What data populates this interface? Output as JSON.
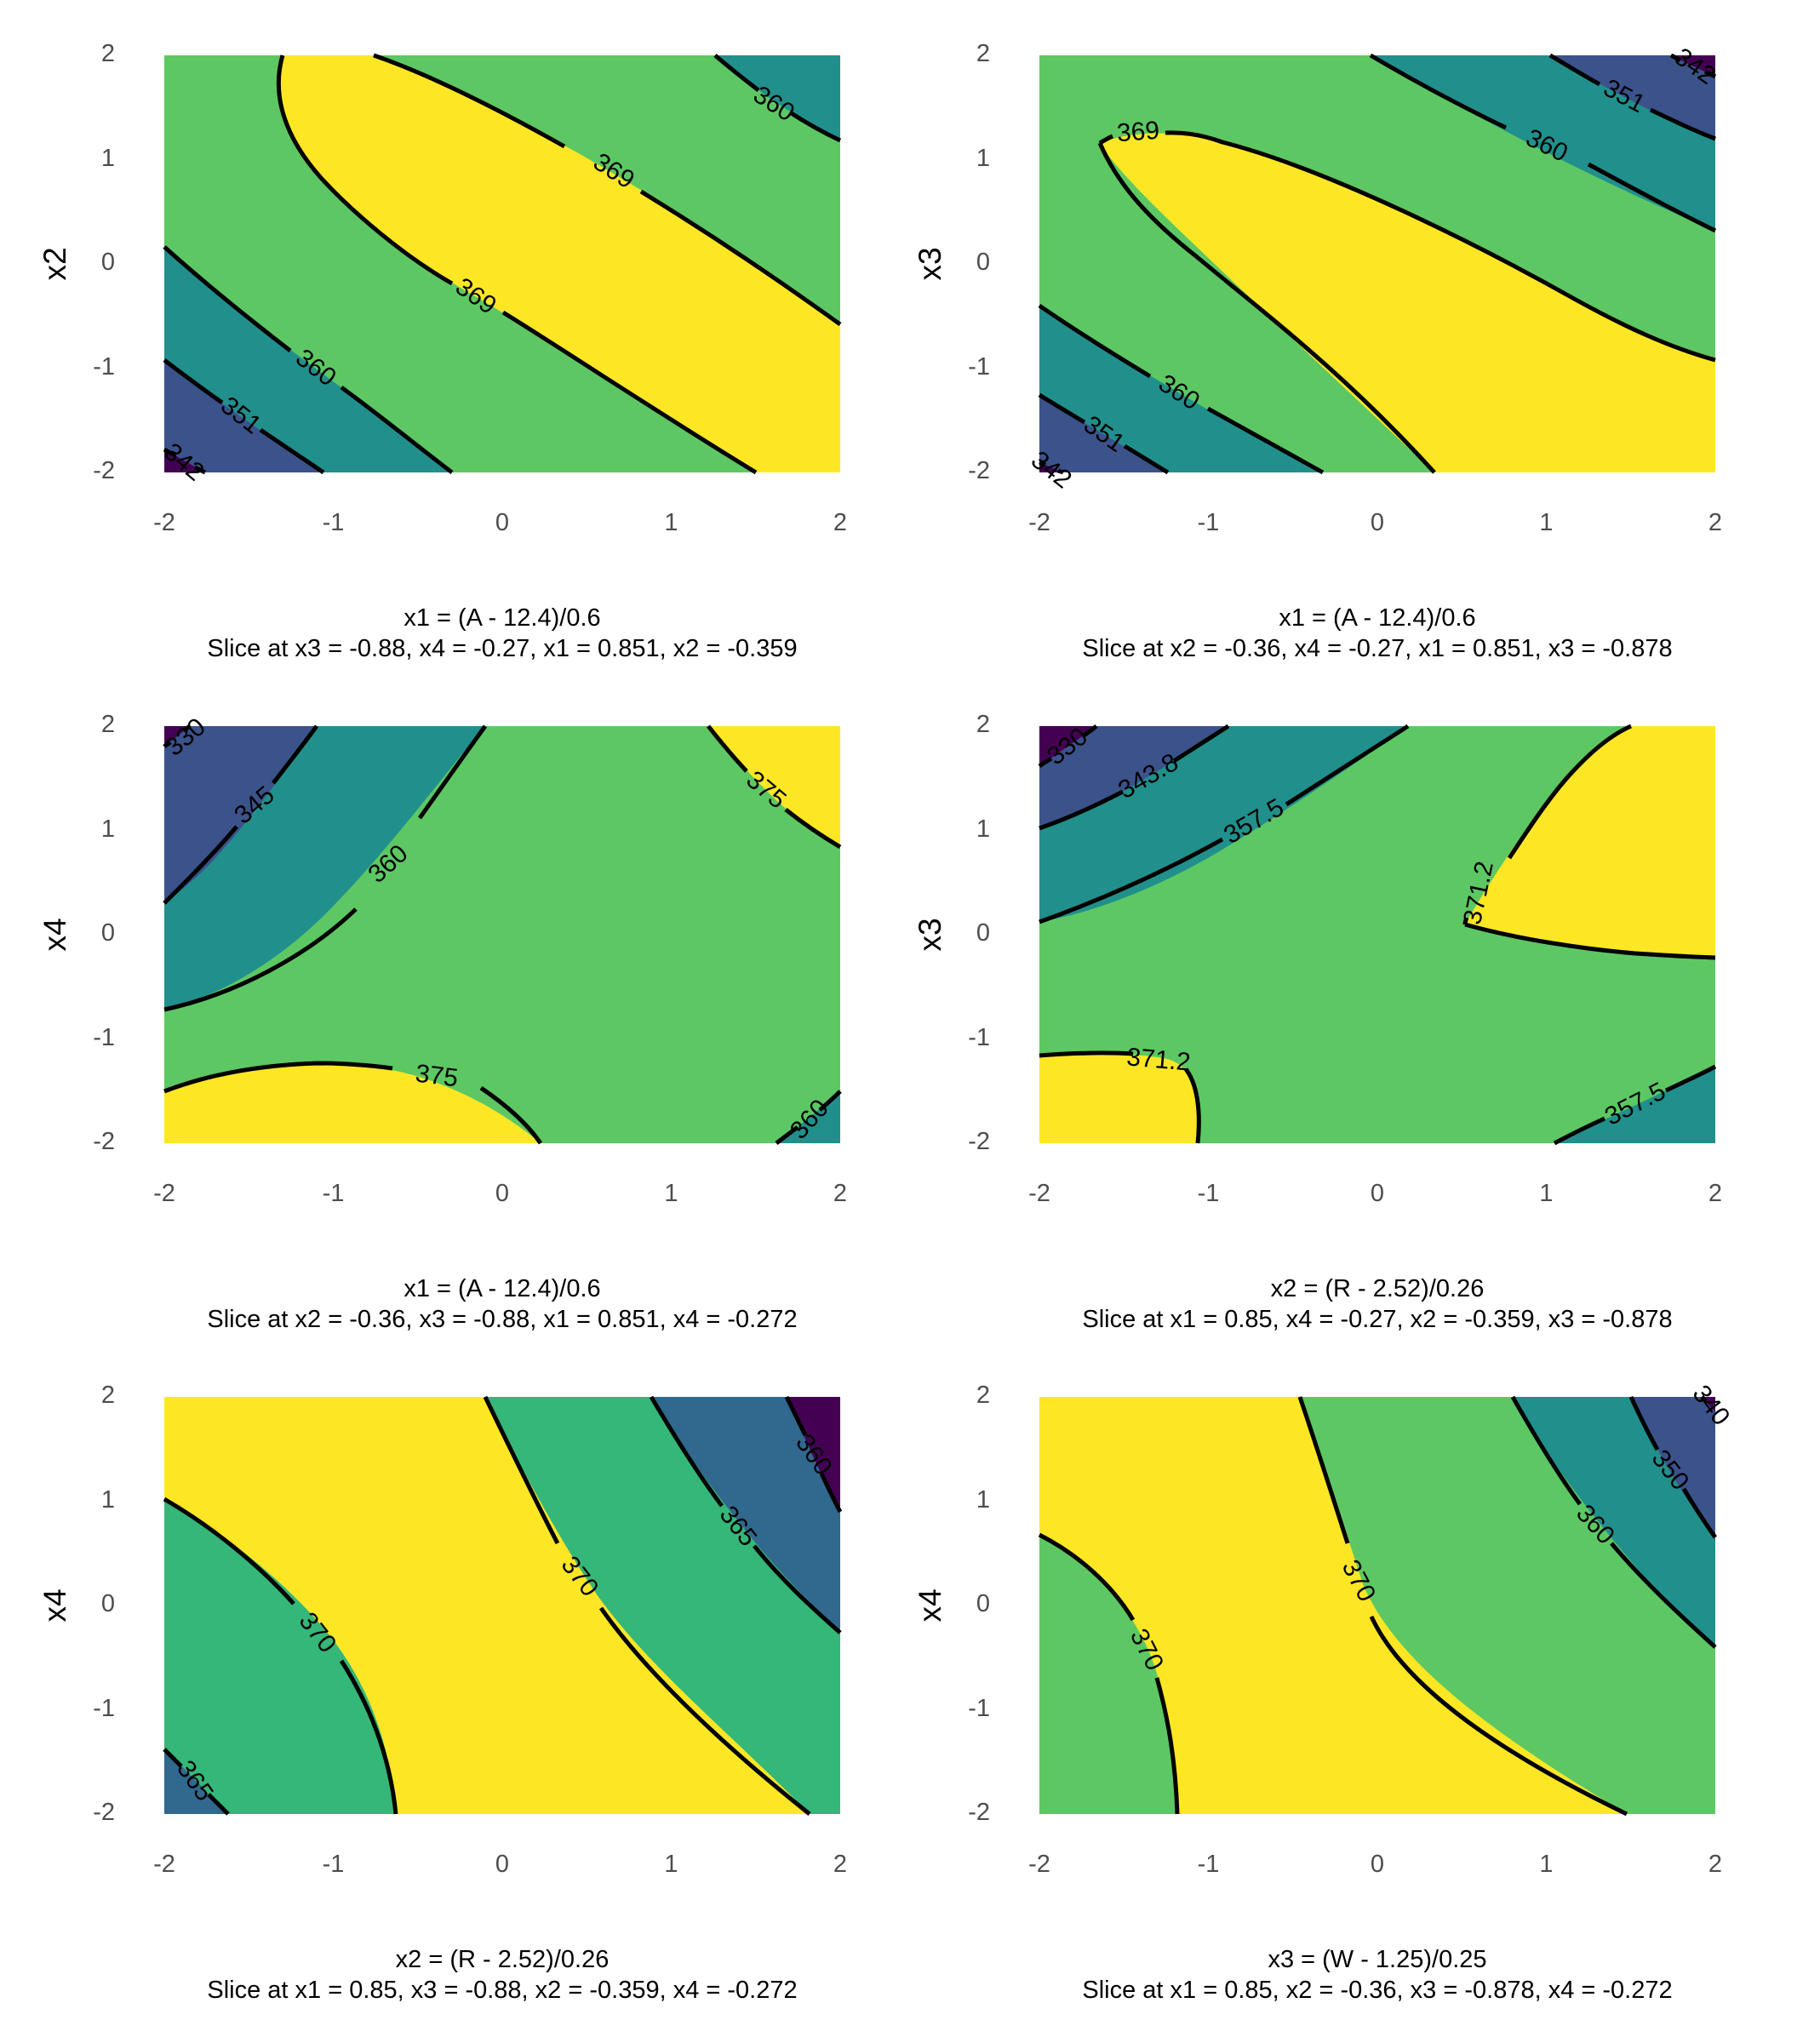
{
  "figure": {
    "background": "#FFFFFF",
    "text_color": "#000000",
    "tick_color": "#4D4D4D",
    "contour_line_color": "#000000",
    "palette_viridis_5": [
      "#440154",
      "#3B528B",
      "#21908C",
      "#5DC863",
      "#FDE725"
    ],
    "palette_viridis_4": [
      "#440154",
      "#31688E",
      "#35B779",
      "#FDE725"
    ]
  },
  "chart_data": [
    {
      "type": "contour",
      "x_var": "x1",
      "y_var": "x2",
      "ylabel": "x2",
      "xlabel": "x1 = (A - 12.4)/0.6",
      "sublabel": "Slice at x3 = -0.88, x4 = -0.27, x1 = 0.851, x2 = -0.359",
      "xlim": [
        -2,
        2
      ],
      "ylim": [
        -2,
        2
      ],
      "x_ticks": [
        "-2",
        "-1",
        "0",
        "1",
        "2"
      ],
      "y_ticks": [
        "2",
        "1",
        "0",
        "-1",
        "-2"
      ],
      "contour_levels": [
        342,
        351,
        360,
        369
      ],
      "contour_labels": [
        "360",
        "369",
        "369",
        "360",
        "351",
        "342"
      ],
      "band_colors": [
        "#440154",
        "#3B528B",
        "#21908C",
        "#5DC863",
        "#FDE725"
      ],
      "legend": "none",
      "grid": false
    },
    {
      "type": "contour",
      "x_var": "x1",
      "y_var": "x3",
      "ylabel": "x3",
      "xlabel": "x1 = (A - 12.4)/0.6",
      "sublabel": "Slice at x2 = -0.36, x4 = -0.27, x1 = 0.851, x3 = -0.878",
      "xlim": [
        -2,
        2
      ],
      "ylim": [
        -2,
        2
      ],
      "x_ticks": [
        "-2",
        "-1",
        "0",
        "1",
        "2"
      ],
      "y_ticks": [
        "2",
        "1",
        "0",
        "-1",
        "-2"
      ],
      "contour_levels": [
        342,
        351,
        360,
        369
      ],
      "contour_labels": [
        "369",
        "360",
        "351",
        "342",
        "360",
        "351",
        "342"
      ],
      "band_colors": [
        "#440154",
        "#3B528B",
        "#21908C",
        "#5DC863",
        "#FDE725"
      ],
      "legend": "none",
      "grid": false
    },
    {
      "type": "contour",
      "x_var": "x1",
      "y_var": "x4",
      "ylabel": "x4",
      "xlabel": "x1 = (A - 12.4)/0.6",
      "sublabel": "Slice at x2 = -0.36, x3 = -0.88, x1 = 0.851, x4 = -0.272",
      "xlim": [
        -2,
        2
      ],
      "ylim": [
        -2,
        2
      ],
      "x_ticks": [
        "-2",
        "-1",
        "0",
        "1",
        "2"
      ],
      "y_ticks": [
        "2",
        "1",
        "0",
        "-1",
        "-2"
      ],
      "contour_levels": [
        330,
        345,
        360,
        375
      ],
      "contour_labels": [
        "330",
        "345",
        "360",
        "375",
        "375",
        "360"
      ],
      "band_colors": [
        "#440154",
        "#3B528B",
        "#21908C",
        "#5DC863",
        "#FDE725"
      ],
      "legend": "none",
      "grid": false
    },
    {
      "type": "contour",
      "x_var": "x2",
      "y_var": "x3",
      "ylabel": "x3",
      "xlabel": "x2 = (R - 2.52)/0.26",
      "sublabel": "Slice at x1 = 0.85, x4 = -0.27, x2 = -0.359, x3 = -0.878",
      "xlim": [
        -2,
        2
      ],
      "ylim": [
        -2,
        2
      ],
      "x_ticks": [
        "-2",
        "-1",
        "0",
        "1",
        "2"
      ],
      "y_ticks": [
        "2",
        "1",
        "0",
        "-1",
        "-2"
      ],
      "contour_levels": [
        330,
        343.8,
        357.5,
        371.2
      ],
      "contour_labels": [
        "330",
        "343.8",
        "357.5",
        "371.2",
        "371.2",
        "357.5"
      ],
      "band_colors": [
        "#440154",
        "#3B528B",
        "#21908C",
        "#5DC863",
        "#FDE725"
      ],
      "legend": "none",
      "grid": false
    },
    {
      "type": "contour",
      "x_var": "x2",
      "y_var": "x4",
      "ylabel": "x4",
      "xlabel": "x2 = (R - 2.52)/0.26",
      "sublabel": "Slice at x1 = 0.85, x3 = -0.88, x2 = -0.359, x4 = -0.272",
      "xlim": [
        -2,
        2
      ],
      "ylim": [
        -2,
        2
      ],
      "x_ticks": [
        "-2",
        "-1",
        "0",
        "1",
        "2"
      ],
      "y_ticks": [
        "2",
        "1",
        "0",
        "-1",
        "-2"
      ],
      "contour_levels": [
        360,
        365,
        370
      ],
      "contour_labels": [
        "370",
        "365",
        "370",
        "365",
        "360"
      ],
      "band_colors": [
        "#440154",
        "#31688E",
        "#35B779",
        "#FDE725"
      ],
      "legend": "none",
      "grid": false
    },
    {
      "type": "contour",
      "x_var": "x3",
      "y_var": "x4",
      "ylabel": "x4",
      "xlabel": "x3 = (W - 1.25)/0.25",
      "sublabel": "Slice at x1 = 0.85, x2 = -0.36, x3 = -0.878, x4 = -0.272",
      "xlim": [
        -2,
        2
      ],
      "ylim": [
        -2,
        2
      ],
      "x_ticks": [
        "-2",
        "-1",
        "0",
        "1",
        "2"
      ],
      "y_ticks": [
        "2",
        "1",
        "0",
        "-1",
        "-2"
      ],
      "contour_levels": [
        340,
        350,
        360,
        370
      ],
      "contour_labels": [
        "370",
        "370",
        "360",
        "350",
        "340"
      ],
      "band_colors": [
        "#440154",
        "#3B528B",
        "#21908C",
        "#5DC863",
        "#FDE725"
      ],
      "legend": "none",
      "grid": false
    }
  ]
}
